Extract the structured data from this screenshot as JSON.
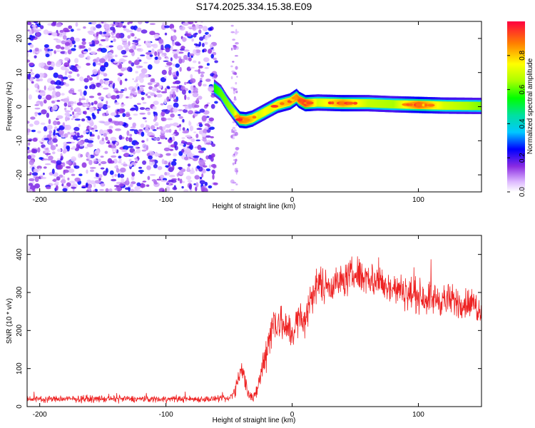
{
  "title": "S174.2025.334.15.38.E09",
  "chart_data": [
    {
      "type": "heatmap",
      "name": "spectrogram",
      "xlabel": "Height of straight line (km)",
      "ylabel": "Frequency (Hz)",
      "xlim": [
        -210,
        150
      ],
      "ylim": [
        -25,
        25
      ],
      "xticks": [
        -200,
        -100,
        0,
        100
      ],
      "xtick_labels": [
        "-200",
        "-100",
        "0",
        "100"
      ],
      "yticks": [
        -20,
        -10,
        0,
        10,
        20
      ],
      "ytick_labels": [
        "-20",
        "-10",
        "0",
        "10",
        "20"
      ],
      "noise_region_x": [
        -210,
        -60
      ],
      "sparse_noise_x": [
        -48,
        -43
      ],
      "ridge": {
        "x": [
          -62,
          -57,
          -52,
          -47,
          -42,
          -37,
          -32,
          -27,
          -22,
          -17,
          -12,
          -7,
          -2,
          3,
          5,
          10,
          20,
          40,
          60,
          80,
          100,
          120,
          150
        ],
        "y": [
          5.5,
          4.0,
          1.0,
          -1.5,
          -3.8,
          -4.0,
          -3.5,
          -2.5,
          -1.5,
          -0.5,
          0.5,
          1.0,
          1.5,
          2.8,
          2.0,
          1.0,
          1.2,
          1.0,
          1.0,
          0.7,
          0.5,
          0.3,
          0.2
        ],
        "intensity": [
          0.55,
          0.6,
          0.62,
          0.65,
          0.9,
          0.85,
          0.8,
          0.7,
          0.75,
          0.72,
          0.78,
          0.8,
          0.82,
          0.85,
          0.88,
          0.95,
          0.7,
          0.85,
          0.68,
          0.65,
          0.9,
          0.7,
          0.62
        ]
      },
      "colorbar": {
        "label": "Normalized spectral amplitude",
        "range": [
          0,
          1
        ],
        "ticks": [
          0.0,
          0.2,
          0.4,
          0.6,
          0.8
        ],
        "tick_labels": [
          "0.0",
          "0.2",
          "0.4",
          "0.6",
          "0.8"
        ]
      }
    },
    {
      "type": "line",
      "name": "snr",
      "xlabel": "Height of straight line (km)",
      "ylabel": "SNR (10 * v/v)",
      "xlim": [
        -210,
        150
      ],
      "ylim": [
        0,
        450
      ],
      "xticks": [
        -200,
        -100,
        0,
        100
      ],
      "xtick_labels": [
        "-200",
        "-100",
        "0",
        "100"
      ],
      "yticks": [
        0,
        100,
        200,
        300,
        400
      ],
      "ytick_labels": [
        "0",
        "100",
        "200",
        "300",
        "400"
      ],
      "color": "#ee2222",
      "envelope": {
        "x": [
          -210,
          -50,
          -45,
          -40,
          -35,
          -30,
          -25,
          -20,
          -15,
          -10,
          -5,
          0,
          5,
          10,
          15,
          20,
          30,
          40,
          50,
          60,
          80,
          100,
          120,
          140,
          150
        ],
        "y": [
          20,
          20,
          45,
          100,
          40,
          20,
          80,
          160,
          220,
          230,
          200,
          195,
          230,
          220,
          290,
          320,
          320,
          330,
          350,
          340,
          310,
          290,
          280,
          270,
          260
        ],
        "amplitude": [
          8,
          8,
          15,
          25,
          18,
          15,
          30,
          50,
          55,
          50,
          45,
          40,
          45,
          40,
          45,
          45,
          40,
          40,
          45,
          45,
          40,
          40,
          40,
          40,
          40
        ]
      }
    }
  ]
}
